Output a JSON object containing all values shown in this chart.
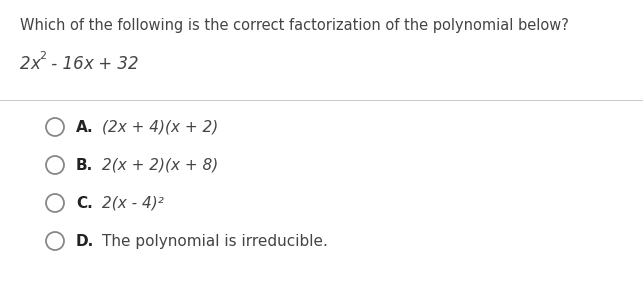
{
  "question": "Which of the following is the correct factorization of the polynomial below?",
  "poly_parts": [
    {
      "text": "2",
      "style": "normal"
    },
    {
      "text": "x",
      "style": "italic"
    },
    {
      "text": "² - 16",
      "style": "normal"
    },
    {
      "text": "x",
      "style": "italic"
    },
    {
      "text": " + 32",
      "style": "normal"
    }
  ],
  "options": [
    {
      "label": "A.",
      "text": "(2x + 4)(x + 2)",
      "italic": true
    },
    {
      "label": "B.",
      "text": "2(x + 2)(x + 8)",
      "italic": true
    },
    {
      "label": "C.",
      "text": "2(x - 4)²",
      "italic": true
    },
    {
      "label": "D.",
      "text": "The polynomial is irreducible.",
      "italic": false
    }
  ],
  "bg_color": "#ffffff",
  "text_color": "#444444",
  "label_color": "#222222",
  "divider_color": "#cccccc",
  "question_fontsize": 10.5,
  "poly_fontsize": 12.0,
  "option_fontsize": 11.0,
  "figwidth": 6.43,
  "figheight": 2.86,
  "dpi": 100
}
